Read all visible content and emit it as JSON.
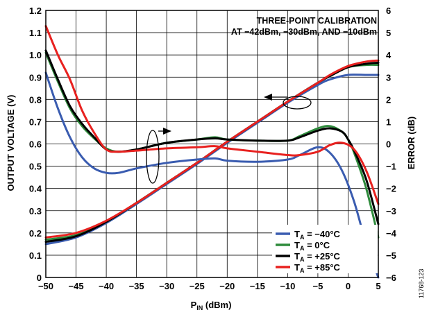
{
  "chart_data": {
    "type": "line",
    "xlabel": {
      "main": "P",
      "sub": "IN",
      "rest": " (dBm)"
    },
    "ylabel": "OUTPUT VOLTAGE (V)",
    "y2label": "ERROR (dB)",
    "xlim": [
      -50,
      5
    ],
    "ylim": [
      0,
      1.2
    ],
    "y2lim": [
      -6,
      6
    ],
    "xticks": [
      "−50",
      "−45",
      "−40",
      "−35",
      "−30",
      "−25",
      "−20",
      "−15",
      "−10",
      "−5",
      "0",
      "5"
    ],
    "yticks": [
      "0",
      "0.1",
      "0.2",
      "0.3",
      "0.4",
      "0.5",
      "0.6",
      "0.7",
      "0.8",
      "0.9",
      "1.0",
      "1.1",
      "1.2"
    ],
    "y2ticks": [
      "−6",
      "−5",
      "−4",
      "−3",
      "−2",
      "−1",
      "0",
      "1",
      "2",
      "3",
      "4",
      "5",
      "6"
    ],
    "grid": true,
    "legend_position": "bottom-right",
    "annotation": [
      "THREE-POINT CALIBRATION",
      "AT −42dBm, −30dBm, AND −10dBm"
    ],
    "figure_id": "11768-123",
    "colors": {
      "m40": "#3a5cb0",
      "0": "#2e8b3c",
      "p25": "#000000",
      "p85": "#e8211f"
    },
    "series": [
      {
        "name": "T_A = −40°C",
        "legend": {
          "main": "T",
          "sub": "A",
          "rest": " = −40°C"
        },
        "color": "#3a5cb0",
        "axis": "voltage",
        "x": [
          -50,
          -45,
          -40,
          -35,
          -30,
          -25,
          -20,
          -15,
          -10,
          -5,
          -3,
          0,
          3,
          5
        ],
        "y": [
          0.15,
          0.18,
          0.245,
          0.33,
          0.42,
          0.51,
          0.605,
          0.695,
          0.785,
          0.865,
          0.89,
          0.91,
          0.91,
          0.91
        ]
      },
      {
        "name": "T_A = 0°C",
        "legend": {
          "main": "T",
          "sub": "A",
          "rest": " = 0°C"
        },
        "color": "#2e8b3c",
        "axis": "voltage",
        "x": [
          -50,
          -45,
          -40,
          -35,
          -30,
          -25,
          -20,
          -15,
          -10,
          -5,
          -3,
          0,
          3,
          5
        ],
        "y": [
          0.17,
          0.19,
          0.25,
          0.335,
          0.425,
          0.515,
          0.61,
          0.7,
          0.79,
          0.875,
          0.905,
          0.945,
          0.955,
          0.955
        ]
      },
      {
        "name": "T_A = +25°C",
        "legend": {
          "main": "T",
          "sub": "A",
          "rest": " = +25°C"
        },
        "color": "#000000",
        "axis": "voltage",
        "x": [
          -50,
          -45,
          -40,
          -35,
          -30,
          -25,
          -20,
          -15,
          -10,
          -5,
          -3,
          0,
          3,
          5
        ],
        "y": [
          0.16,
          0.185,
          0.25,
          0.335,
          0.425,
          0.515,
          0.61,
          0.7,
          0.79,
          0.875,
          0.905,
          0.945,
          0.96,
          0.965
        ]
      },
      {
        "name": "T_A = +85°C",
        "legend": {
          "main": "T",
          "sub": "A",
          "rest": " = +85°C"
        },
        "color": "#e8211f",
        "axis": "voltage",
        "x": [
          -50,
          -45,
          -40,
          -35,
          -30,
          -25,
          -20,
          -15,
          -10,
          -5,
          -3,
          0,
          3,
          5
        ],
        "y": [
          0.18,
          0.2,
          0.255,
          0.335,
          0.425,
          0.515,
          0.61,
          0.7,
          0.79,
          0.875,
          0.91,
          0.95,
          0.97,
          0.975
        ]
      },
      {
        "name": "T_A = −40°C",
        "color": "#3a5cb0",
        "axis": "error",
        "x": [
          -50,
          -48,
          -46,
          -44,
          -42,
          -40,
          -38,
          -35,
          -30,
          -25,
          -22,
          -20,
          -15,
          -10,
          -8,
          -5,
          -3,
          -1,
          1,
          3,
          5
        ],
        "y": [
          3.2,
          1.6,
          0.3,
          -0.6,
          -1.1,
          -1.3,
          -1.3,
          -1.1,
          -0.85,
          -0.7,
          -0.65,
          -0.75,
          -0.8,
          -0.7,
          -0.5,
          -0.15,
          -0.4,
          -1.2,
          -2.6,
          -4.5,
          -6.0
        ]
      },
      {
        "name": "T_A = 0°C",
        "color": "#2e8b3c",
        "axis": "error",
        "x": [
          -50,
          -48,
          -46,
          -44,
          -42,
          -40,
          -38,
          -35,
          -30,
          -25,
          -22,
          -20,
          -15,
          -10,
          -8,
          -5,
          -3,
          -1,
          0,
          1,
          3,
          5
        ],
        "y": [
          4.1,
          2.8,
          1.6,
          0.8,
          0.25,
          -0.2,
          -0.35,
          -0.25,
          0.05,
          0.2,
          0.3,
          0.2,
          0.15,
          0.15,
          0.35,
          0.7,
          0.8,
          0.55,
          0.2,
          -0.4,
          -2.0,
          -4.2
        ]
      },
      {
        "name": "T_A = +25°C",
        "color": "#000000",
        "axis": "error",
        "x": [
          -50,
          -48,
          -46,
          -44,
          -42,
          -40,
          -38,
          -35,
          -30,
          -25,
          -22,
          -20,
          -15,
          -10,
          -8,
          -5,
          -3,
          -1,
          0,
          1,
          3,
          5
        ],
        "y": [
          4.2,
          2.9,
          1.7,
          0.9,
          0.3,
          -0.25,
          -0.35,
          -0.25,
          0.05,
          0.2,
          0.25,
          0.2,
          0.15,
          0.15,
          0.3,
          0.6,
          0.7,
          0.55,
          0.2,
          -0.3,
          -1.6,
          -3.6
        ]
      },
      {
        "name": "T_A = +85°C",
        "color": "#e8211f",
        "axis": "error",
        "x": [
          -50,
          -48,
          -46,
          -44,
          -42,
          -40,
          -38,
          -35,
          -30,
          -25,
          -22,
          -20,
          -15,
          -10,
          -8,
          -5,
          -3,
          -1,
          1,
          3,
          5
        ],
        "y": [
          5.3,
          4.0,
          2.9,
          1.5,
          0.5,
          -0.25,
          -0.35,
          -0.3,
          -0.2,
          -0.15,
          -0.1,
          -0.2,
          -0.35,
          -0.5,
          -0.5,
          -0.35,
          -0.05,
          0.05,
          -0.25,
          -1.2,
          -2.7
        ]
      }
    ]
  }
}
